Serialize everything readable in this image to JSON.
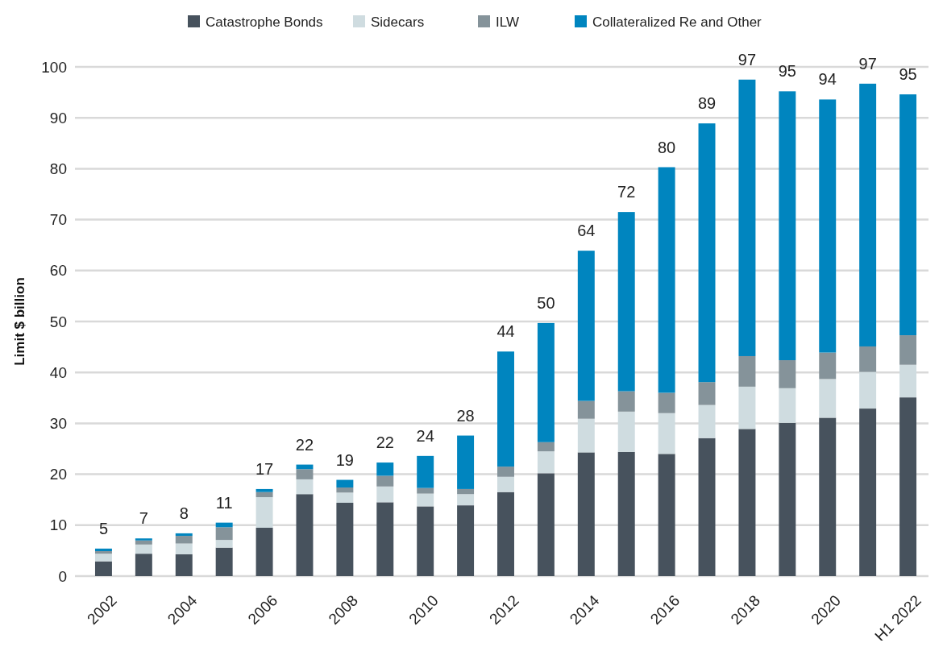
{
  "chart_data": {
    "type": "bar",
    "stacked": true,
    "ylabel": "Limit $ billion",
    "categories": [
      "2002",
      null,
      "2004",
      null,
      "2006",
      null,
      "2008",
      null,
      "2010",
      null,
      "2012",
      null,
      "2014",
      null,
      "2016",
      null,
      "2018",
      null,
      "2020",
      null,
      "H1 2022"
    ],
    "series": [
      {
        "name": "Catastrophe Bonds",
        "color": "#47525d",
        "values": [
          2.9,
          4.4,
          4.3,
          5.6,
          9.5,
          16.1,
          14.4,
          14.5,
          13.7,
          13.9,
          16.5,
          20.2,
          24.3,
          24.4,
          24.0,
          27.1,
          28.9,
          30.1,
          31.1,
          32.9,
          35.1
        ]
      },
      {
        "name": "Sidecars",
        "color": "#cfdce0",
        "values": [
          1.5,
          1.8,
          2.1,
          1.5,
          6.0,
          2.9,
          2.0,
          3.1,
          2.5,
          2.2,
          3.0,
          4.3,
          6.6,
          7.9,
          8.0,
          6.5,
          8.3,
          6.8,
          7.6,
          7.2,
          6.4
        ]
      },
      {
        "name": "ILW",
        "color": "#85939a",
        "values": [
          0.5,
          0.8,
          1.5,
          2.5,
          1.0,
          2.0,
          1.0,
          2.1,
          1.1,
          1.0,
          2.0,
          1.8,
          3.5,
          4.0,
          4.0,
          4.5,
          6.0,
          5.5,
          5.2,
          5.0,
          5.8
        ]
      },
      {
        "name": "Collateralized Re and Other",
        "color": "#0085bf",
        "values": [
          0.5,
          0.4,
          0.5,
          0.9,
          0.6,
          0.9,
          1.5,
          2.6,
          6.3,
          10.5,
          22.6,
          23.4,
          29.5,
          35.2,
          44.3,
          50.8,
          54.3,
          52.8,
          49.7,
          51.6,
          47.3
        ]
      }
    ],
    "totals": [
      "5",
      "7",
      "8",
      "11",
      "17",
      "22",
      "19",
      "22",
      "24",
      "28",
      "44",
      "50",
      "64",
      "72",
      "80",
      "89",
      "97",
      "95",
      "94",
      "97",
      "95"
    ],
    "ylim": [
      0,
      100
    ],
    "yticks": [
      0,
      10,
      20,
      30,
      40,
      50,
      60,
      70,
      80,
      90,
      100
    ],
    "grid": "y",
    "legend": "top"
  }
}
